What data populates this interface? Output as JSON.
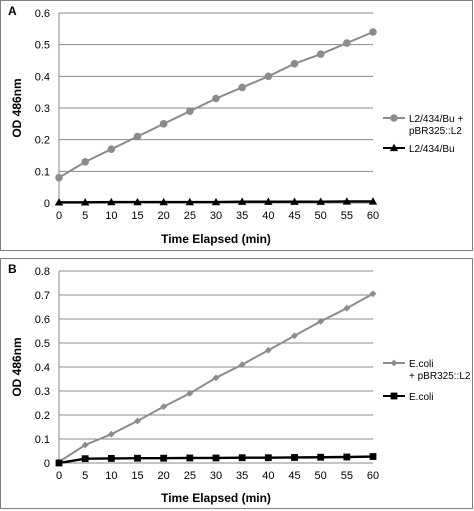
{
  "chart_data": [
    {
      "panel": "A",
      "type": "line",
      "xlabel": "Time Elapsed (min)",
      "ylabel": "OD 486nm",
      "x": [
        0,
        5,
        10,
        15,
        20,
        25,
        30,
        35,
        40,
        45,
        50,
        55,
        60
      ],
      "xlim": [
        0,
        60
      ],
      "ylim": [
        0,
        0.6
      ],
      "yticks": [
        "0",
        "0.1",
        "0.2",
        "0.3",
        "0.4",
        "0.5",
        "0.6"
      ],
      "xticks": [
        "0",
        "5",
        "10",
        "15",
        "20",
        "25",
        "30",
        "35",
        "40",
        "45",
        "50",
        "55",
        "60"
      ],
      "grid": "horizontal",
      "legend": "right",
      "series": [
        {
          "name_lines": [
            "L2/434/Bu +",
            "pBR325::L2"
          ],
          "color": "#8c8c8c",
          "marker": "circle",
          "values": [
            0.08,
            0.13,
            0.17,
            0.21,
            0.25,
            0.29,
            0.33,
            0.365,
            0.4,
            0.44,
            0.47,
            0.505,
            0.54
          ]
        },
        {
          "name_lines": [
            "L2/434/Bu"
          ],
          "color": "#000000",
          "marker": "triangle",
          "values": [
            0.002,
            0.002,
            0.003,
            0.003,
            0.003,
            0.003,
            0.003,
            0.004,
            0.004,
            0.004,
            0.004,
            0.005,
            0.005
          ]
        }
      ]
    },
    {
      "panel": "B",
      "type": "line",
      "xlabel": "Time Elapsed (min)",
      "ylabel": "OD 486nm",
      "x": [
        0,
        5,
        10,
        15,
        20,
        25,
        30,
        35,
        40,
        45,
        50,
        55,
        60
      ],
      "xlim": [
        0,
        60
      ],
      "ylim": [
        0,
        0.8
      ],
      "yticks": [
        "0",
        "0.1",
        "0.2",
        "0.3",
        "0.4",
        "0.5",
        "0.6",
        "0.7",
        "0.8"
      ],
      "xticks": [
        "0",
        "5",
        "10",
        "15",
        "20",
        "25",
        "30",
        "35",
        "40",
        "45",
        "50",
        "55",
        "60"
      ],
      "grid": "horizontal",
      "legend": "right",
      "series": [
        {
          "name_lines": [
            "E.coli",
            "+ pBR325::L2"
          ],
          "color": "#8c8c8c",
          "marker": "diamond",
          "values": [
            0.005,
            0.075,
            0.12,
            0.175,
            0.235,
            0.29,
            0.355,
            0.41,
            0.47,
            0.53,
            0.59,
            0.645,
            0.705
          ]
        },
        {
          "name_lines": [
            "E.coli"
          ],
          "color": "#000000",
          "marker": "square",
          "values": [
            0.0,
            0.018,
            0.019,
            0.02,
            0.02,
            0.021,
            0.021,
            0.022,
            0.022,
            0.023,
            0.024,
            0.025,
            0.027
          ]
        }
      ]
    }
  ]
}
